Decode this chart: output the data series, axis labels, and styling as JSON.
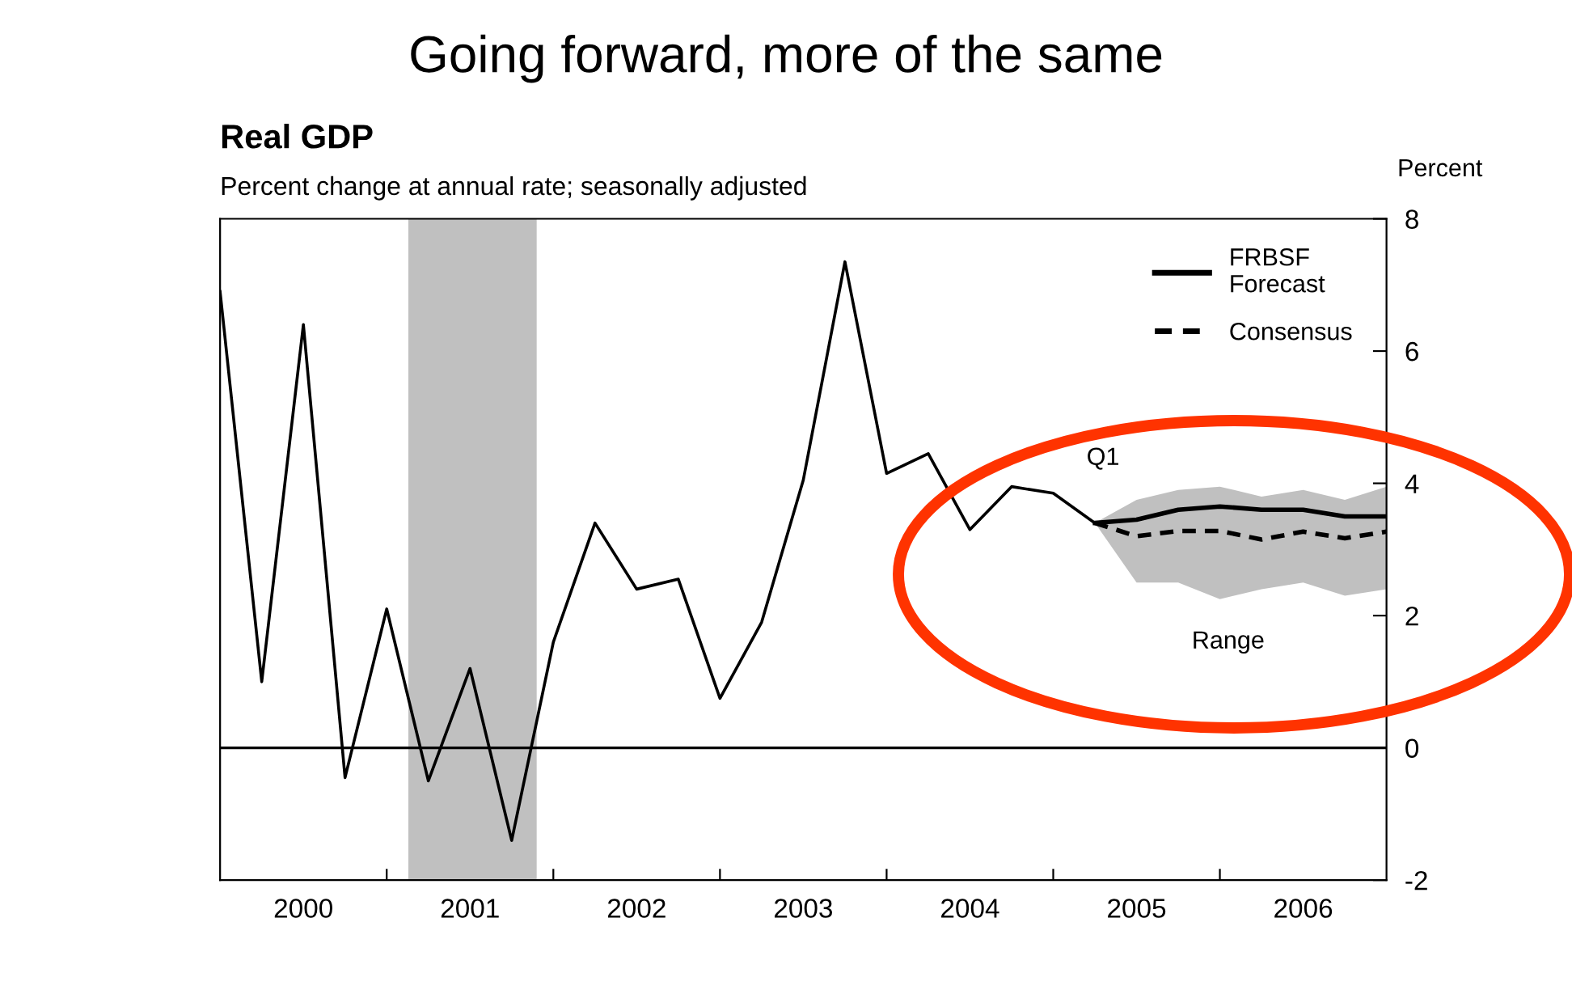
{
  "chart_data": {
    "type": "line",
    "title": "Going forward, more of the same",
    "subtitle": "Real GDP",
    "ylabel": "Percent",
    "annotations": [
      "Percent change at annual rate; seasonally adjusted",
      "Q1",
      "Range"
    ],
    "xlim": [
      2000,
      2007
    ],
    "xticks": [
      {
        "value": 2000.5,
        "label": "2000"
      },
      {
        "value": 2001,
        "label": null
      },
      {
        "value": 2001.5,
        "label": "2001"
      },
      {
        "value": 2002,
        "label": null
      },
      {
        "value": 2002.5,
        "label": "2002"
      },
      {
        "value": 2003,
        "label": null
      },
      {
        "value": 2003.5,
        "label": "2003"
      },
      {
        "value": 2004,
        "label": null
      },
      {
        "value": 2004.5,
        "label": "2004"
      },
      {
        "value": 2005,
        "label": null
      },
      {
        "value": 2005.5,
        "label": "2005"
      },
      {
        "value": 2006,
        "label": null
      },
      {
        "value": 2006.5,
        "label": "2006"
      }
    ],
    "ylim": [
      -2,
      8
    ],
    "yticks": [
      -2,
      0,
      2,
      4,
      6,
      8
    ],
    "series": [
      {
        "color": "#000000",
        "line_style": "solid",
        "x": [
          2000,
          2000.25,
          2000.5,
          2000.75,
          2001,
          2001.25,
          2001.5,
          2001.75,
          2002,
          2002.25,
          2002.5,
          2002.75,
          2003,
          2003.25,
          2003.5,
          2003.75,
          2004,
          2004.25,
          2004.5,
          2004.75,
          2005,
          2005.25
        ],
        "values": [
          6.9,
          1.0,
          6.4,
          -0.45,
          2.1,
          -0.5,
          1.2,
          -1.4,
          1.6,
          3.4,
          2.4,
          2.55,
          0.75,
          1.9,
          4.05,
          7.35,
          4.15,
          4.45,
          3.3,
          3.95,
          3.85,
          3.4
        ]
      },
      {
        "name": "FRBSF\nForecast",
        "color": "#000000",
        "line_style": "solid",
        "x": [
          2005.25,
          2005.5,
          2005.75,
          2006,
          2006.25,
          2006.5,
          2006.75,
          2007
        ],
        "values": [
          3.4,
          3.45,
          3.6,
          3.65,
          3.6,
          3.6,
          3.5,
          3.5
        ]
      },
      {
        "name": "Consensus",
        "color": "#000000",
        "line_style": "dashed",
        "x": [
          2005.25,
          2005.5,
          2005.75,
          2006,
          2006.25,
          2006.5,
          2006.75,
          2007
        ],
        "values": [
          3.4,
          3.2,
          3.28,
          3.28,
          3.15,
          3.27,
          3.17,
          3.27
        ],
        "lower": [
          3.4,
          2.5,
          2.5,
          2.25,
          2.4,
          2.5,
          2.3,
          2.4
        ],
        "upper": [
          3.4,
          3.75,
          3.9,
          3.95,
          3.8,
          3.9,
          3.75,
          3.95
        ]
      }
    ],
    "bands": [
      {
        "axis": "x",
        "from": 2001.13,
        "to": 2001.9,
        "color": "#c0c0c0"
      }
    ],
    "ref_lines": [
      {
        "axis": "y",
        "value": 0,
        "color": "#000000",
        "line_style": "solid"
      }
    ],
    "legend": "top right",
    "grid": false
  }
}
